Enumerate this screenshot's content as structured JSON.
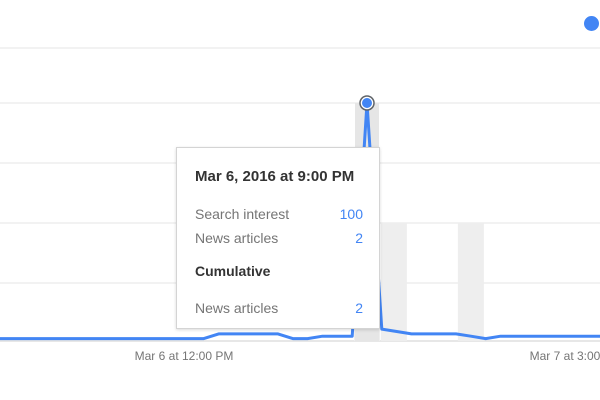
{
  "chart_data": {
    "type": "line",
    "x_ticks": [
      "Mar 6 at 12:00 PM",
      "Mar 7 at 3:00"
    ],
    "series": [
      {
        "values": [
          1,
          1,
          1,
          1,
          1,
          1,
          1,
          1,
          1,
          1,
          1,
          1,
          1,
          1,
          1,
          3,
          3,
          3,
          3,
          3,
          1,
          1,
          2,
          2,
          2,
          100,
          5,
          4,
          3,
          3,
          3,
          3,
          2,
          1,
          2,
          2,
          2,
          2,
          2,
          2,
          2,
          2
        ]
      }
    ],
    "news_article_bars": [
      {
        "index": 25,
        "value": 2
      },
      {
        "index": 26,
        "value": 2
      },
      {
        "index": 32,
        "value": 2
      }
    ],
    "highlight_index": 25,
    "ylim": [
      0,
      100
    ],
    "grid": true,
    "legend": "top-right",
    "colors": {
      "line": "#4285f4",
      "bars": "#eeeeee",
      "grid": "#e5e5e5",
      "highlight_band": "#e6e6e6"
    }
  },
  "tooltip": {
    "title": "Mar 6, 2016 at 9:00 PM",
    "rows": [
      {
        "label": "Search interest",
        "value": "100"
      },
      {
        "label": "News articles",
        "value": "2"
      }
    ],
    "section_title": "Cumulative",
    "cumulative_rows": [
      {
        "label": "News articles",
        "value": "2"
      }
    ]
  },
  "legend": {
    "color": "#4285f4"
  }
}
